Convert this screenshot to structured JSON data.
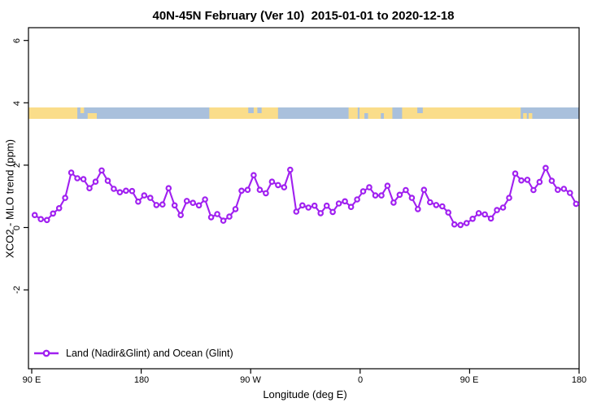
{
  "title": "40N-45N February (Ver 10)  2015-01-01 to 2020-12-18",
  "chart_data": {
    "type": "line",
    "title": "40N-45N February (Ver 10)  2015-01-01 to 2020-12-18",
    "xlabel": "Longitude (deg E)",
    "ylabel": "XCO2 - MLO trend (ppm)",
    "grid": false,
    "legend_position": "bottom-left",
    "x_axis": {
      "tick_labels": [
        "90 E",
        "180",
        "90 W",
        "0",
        "90 E",
        "180"
      ],
      "tick_deg_offsets": [
        0,
        90,
        180,
        270,
        360,
        450
      ],
      "note_span": "longitude wraps eastward from 90E through 180, 90W, 0, 90E to 180"
    },
    "y_axis": {
      "tick_labels": [
        "6",
        "4",
        "2",
        "0",
        "-2"
      ],
      "tick_values": [
        6,
        4,
        2,
        0,
        -2
      ],
      "ylim_shown": [
        -4.5,
        6.4
      ]
    },
    "series": [
      {
        "name": "Land (Nadir&Glint) and Ocean (Glint)",
        "color": "#A020F0",
        "marker": "open-circle",
        "x_start_deg_offset": 2.5,
        "x_step_deg": 5,
        "values": [
          0.4,
          0.27,
          0.24,
          0.45,
          0.62,
          0.95,
          1.76,
          1.58,
          1.55,
          1.26,
          1.47,
          1.83,
          1.5,
          1.24,
          1.13,
          1.18,
          1.17,
          0.83,
          1.03,
          0.95,
          0.72,
          0.74,
          1.26,
          0.71,
          0.4,
          0.85,
          0.79,
          0.71,
          0.9,
          0.33,
          0.43,
          0.22,
          0.35,
          0.59,
          1.18,
          1.21,
          1.68,
          1.21,
          1.1,
          1.47,
          1.36,
          1.29,
          1.85,
          0.51,
          0.71,
          0.64,
          0.7,
          0.46,
          0.7,
          0.5,
          0.77,
          0.84,
          0.66,
          0.9,
          1.16,
          1.29,
          1.03,
          1.03,
          1.34,
          0.8,
          1.05,
          1.2,
          0.95,
          0.59,
          1.21,
          0.81,
          0.72,
          0.68,
          0.48,
          0.1,
          0.08,
          0.14,
          0.28,
          0.46,
          0.42,
          0.29,
          0.56,
          0.64,
          0.95,
          1.73,
          1.51,
          1.53,
          1.2,
          1.46,
          1.91,
          1.5,
          1.21,
          1.24,
          1.11,
          0.76
        ]
      }
    ],
    "land_ocean_band": {
      "description": "horizontal strip near y=3.6 showing land (yellow) vs ocean (blue) along longitude",
      "land_color": "#FADD8A",
      "ocean_color": "#A9C0DC",
      "approx_y_value_range": [
        3.45,
        3.8
      ],
      "segments": [
        {
          "from": -2.7,
          "to": 37.5,
          "type": "land",
          "vert": "full"
        },
        {
          "from": 40,
          "to": 43,
          "type": "land",
          "vert": "top"
        },
        {
          "from": 46,
          "to": 53.5,
          "type": "land",
          "vert": "bottom"
        },
        {
          "from": 146,
          "to": 202.5,
          "type": "land",
          "vert": "full"
        },
        {
          "from": 260.5,
          "to": 268,
          "type": "land",
          "vert": "full"
        },
        {
          "from": 269.5,
          "to": 402,
          "type": "land",
          "vert": "full"
        },
        {
          "from": 404,
          "to": 407,
          "type": "land",
          "vert": "bottom"
        },
        {
          "from": 408.5,
          "to": 411.5,
          "type": "land",
          "vert": "bottom"
        },
        {
          "from": 178,
          "to": 182.5,
          "type": "ocean",
          "vert": "top"
        },
        {
          "from": 185.5,
          "to": 189,
          "type": "ocean",
          "vert": "top"
        },
        {
          "from": 273.5,
          "to": 276.5,
          "type": "ocean",
          "vert": "bottom"
        },
        {
          "from": 287,
          "to": 289.5,
          "type": "ocean",
          "vert": "bottom"
        },
        {
          "from": 296.5,
          "to": 304.5,
          "type": "ocean",
          "vert": "full"
        },
        {
          "from": 317,
          "to": 321.5,
          "type": "ocean",
          "vert": "top"
        }
      ]
    },
    "legend": {
      "label": "Land (Nadir&Glint) and Ocean (Glint)"
    }
  }
}
